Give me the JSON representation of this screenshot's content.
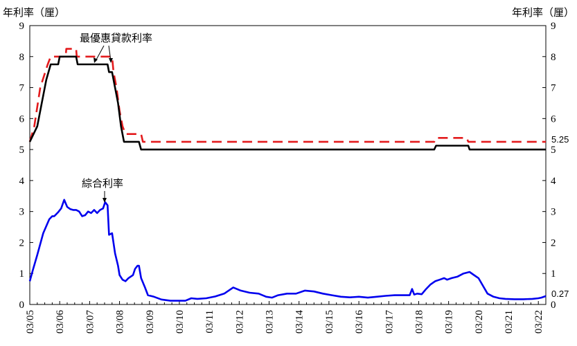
{
  "chart_data": {
    "type": "line",
    "title": "",
    "ylabel_left": "年利率（厘）",
    "ylabel_right": "年利率（厘）",
    "ylim": [
      0,
      9
    ],
    "yticks": [
      "0",
      "1",
      "2",
      "3",
      "4",
      "5",
      "6",
      "7",
      "8",
      "9"
    ],
    "x_ticks": [
      "03/05",
      "03/06",
      "03/07",
      "03/08",
      "03/09",
      "03/10",
      "03/11",
      "03/12",
      "03/13",
      "03/14",
      "03/15",
      "03/16",
      "03/17",
      "03/18",
      "03/19",
      "03/20",
      "03/21",
      "03/22"
    ],
    "x_range": [
      2005.0,
      2022.25
    ],
    "grid": false,
    "annotations": [
      {
        "text": "最優惠貸款利率",
        "points_to": "best_lending_rate"
      },
      {
        "text": "綜合利率",
        "points_to": "composite_rate"
      }
    ],
    "end_labels": [
      {
        "text": "5.25",
        "series": "best_lending_rate_upper"
      },
      {
        "text": "0.27",
        "series": "composite_rate"
      }
    ],
    "series": [
      {
        "key": "best_lending_rate_upper",
        "color": "#e31a1c",
        "style": "dashed",
        "points": [
          [
            2005.0,
            5.25
          ],
          [
            2005.15,
            5.75
          ],
          [
            2005.35,
            7.0
          ],
          [
            2005.6,
            7.75
          ],
          [
            2005.7,
            8.0
          ],
          [
            2006.2,
            8.0
          ],
          [
            2006.22,
            8.25
          ],
          [
            2006.55,
            8.25
          ],
          [
            2006.57,
            8.0
          ],
          [
            2007.75,
            8.0
          ],
          [
            2007.8,
            7.5
          ],
          [
            2007.9,
            7.0
          ],
          [
            2008.0,
            6.25
          ],
          [
            2008.1,
            5.75
          ],
          [
            2008.2,
            5.5
          ],
          [
            2008.72,
            5.5
          ],
          [
            2008.78,
            5.25
          ],
          [
            2018.52,
            5.25
          ],
          [
            2018.58,
            5.375
          ],
          [
            2019.6,
            5.375
          ],
          [
            2019.66,
            5.25
          ],
          [
            2022.25,
            5.25
          ]
        ]
      },
      {
        "key": "best_lending_rate_lower",
        "color": "#000000",
        "style": "solid",
        "points": [
          [
            2005.0,
            5.25
          ],
          [
            2005.25,
            5.75
          ],
          [
            2005.4,
            6.5
          ],
          [
            2005.55,
            7.25
          ],
          [
            2005.7,
            7.75
          ],
          [
            2005.95,
            7.75
          ],
          [
            2006.0,
            8.0
          ],
          [
            2006.55,
            8.0
          ],
          [
            2006.6,
            7.75
          ],
          [
            2007.6,
            7.75
          ],
          [
            2007.65,
            7.5
          ],
          [
            2007.75,
            7.5
          ],
          [
            2007.85,
            7.0
          ],
          [
            2007.95,
            6.5
          ],
          [
            2008.05,
            5.75
          ],
          [
            2008.15,
            5.25
          ],
          [
            2008.65,
            5.25
          ],
          [
            2008.72,
            5.0
          ],
          [
            2018.52,
            5.0
          ],
          [
            2018.58,
            5.125
          ],
          [
            2019.66,
            5.125
          ],
          [
            2019.7,
            5.0
          ],
          [
            2022.25,
            5.0
          ]
        ]
      },
      {
        "key": "composite_rate",
        "color": "#0000ee",
        "style": "solid",
        "points": [
          [
            2005.0,
            0.75
          ],
          [
            2005.1,
            1.1
          ],
          [
            2005.25,
            1.6
          ],
          [
            2005.45,
            2.3
          ],
          [
            2005.65,
            2.75
          ],
          [
            2005.75,
            2.85
          ],
          [
            2005.82,
            2.85
          ],
          [
            2005.95,
            2.98
          ],
          [
            2006.05,
            3.1
          ],
          [
            2006.15,
            3.38
          ],
          [
            2006.25,
            3.15
          ],
          [
            2006.35,
            3.08
          ],
          [
            2006.45,
            3.05
          ],
          [
            2006.55,
            3.05
          ],
          [
            2006.65,
            3.0
          ],
          [
            2006.75,
            2.85
          ],
          [
            2006.85,
            2.88
          ],
          [
            2006.95,
            3.0
          ],
          [
            2007.05,
            2.95
          ],
          [
            2007.15,
            3.05
          ],
          [
            2007.25,
            2.95
          ],
          [
            2007.35,
            3.05
          ],
          [
            2007.45,
            3.1
          ],
          [
            2007.52,
            3.3
          ],
          [
            2007.6,
            3.2
          ],
          [
            2007.65,
            2.25
          ],
          [
            2007.75,
            2.3
          ],
          [
            2007.85,
            1.65
          ],
          [
            2007.95,
            1.25
          ],
          [
            2008.0,
            0.95
          ],
          [
            2008.1,
            0.8
          ],
          [
            2008.2,
            0.75
          ],
          [
            2008.3,
            0.85
          ],
          [
            2008.45,
            0.95
          ],
          [
            2008.52,
            1.15
          ],
          [
            2008.6,
            1.25
          ],
          [
            2008.65,
            1.25
          ],
          [
            2008.72,
            0.85
          ],
          [
            2008.85,
            0.55
          ],
          [
            2008.95,
            0.3
          ],
          [
            2009.15,
            0.25
          ],
          [
            2009.4,
            0.16
          ],
          [
            2009.7,
            0.12
          ],
          [
            2010.0,
            0.12
          ],
          [
            2010.2,
            0.12
          ],
          [
            2010.4,
            0.2
          ],
          [
            2010.6,
            0.18
          ],
          [
            2010.9,
            0.2
          ],
          [
            2011.2,
            0.26
          ],
          [
            2011.5,
            0.35
          ],
          [
            2011.8,
            0.55
          ],
          [
            2012.05,
            0.45
          ],
          [
            2012.35,
            0.38
          ],
          [
            2012.65,
            0.35
          ],
          [
            2012.9,
            0.25
          ],
          [
            2013.1,
            0.22
          ],
          [
            2013.3,
            0.3
          ],
          [
            2013.6,
            0.35
          ],
          [
            2013.9,
            0.35
          ],
          [
            2014.2,
            0.45
          ],
          [
            2014.5,
            0.42
          ],
          [
            2014.8,
            0.35
          ],
          [
            2015.1,
            0.3
          ],
          [
            2015.4,
            0.25
          ],
          [
            2015.7,
            0.23
          ],
          [
            2016.0,
            0.25
          ],
          [
            2016.3,
            0.22
          ],
          [
            2016.6,
            0.25
          ],
          [
            2016.9,
            0.28
          ],
          [
            2017.2,
            0.3
          ],
          [
            2017.5,
            0.3
          ],
          [
            2017.7,
            0.3
          ],
          [
            2017.78,
            0.5
          ],
          [
            2017.85,
            0.32
          ],
          [
            2017.95,
            0.35
          ],
          [
            2018.1,
            0.33
          ],
          [
            2018.25,
            0.5
          ],
          [
            2018.4,
            0.65
          ],
          [
            2018.55,
            0.75
          ],
          [
            2018.7,
            0.8
          ],
          [
            2018.85,
            0.85
          ],
          [
            2018.95,
            0.8
          ],
          [
            2019.1,
            0.85
          ],
          [
            2019.3,
            0.9
          ],
          [
            2019.5,
            1.0
          ],
          [
            2019.7,
            1.05
          ],
          [
            2019.85,
            0.95
          ],
          [
            2020.0,
            0.85
          ],
          [
            2020.15,
            0.6
          ],
          [
            2020.3,
            0.35
          ],
          [
            2020.5,
            0.25
          ],
          [
            2020.7,
            0.2
          ],
          [
            2020.9,
            0.18
          ],
          [
            2021.2,
            0.17
          ],
          [
            2021.5,
            0.17
          ],
          [
            2021.8,
            0.18
          ],
          [
            2022.0,
            0.2
          ],
          [
            2022.1,
            0.22
          ],
          [
            2022.25,
            0.27
          ]
        ]
      }
    ]
  }
}
